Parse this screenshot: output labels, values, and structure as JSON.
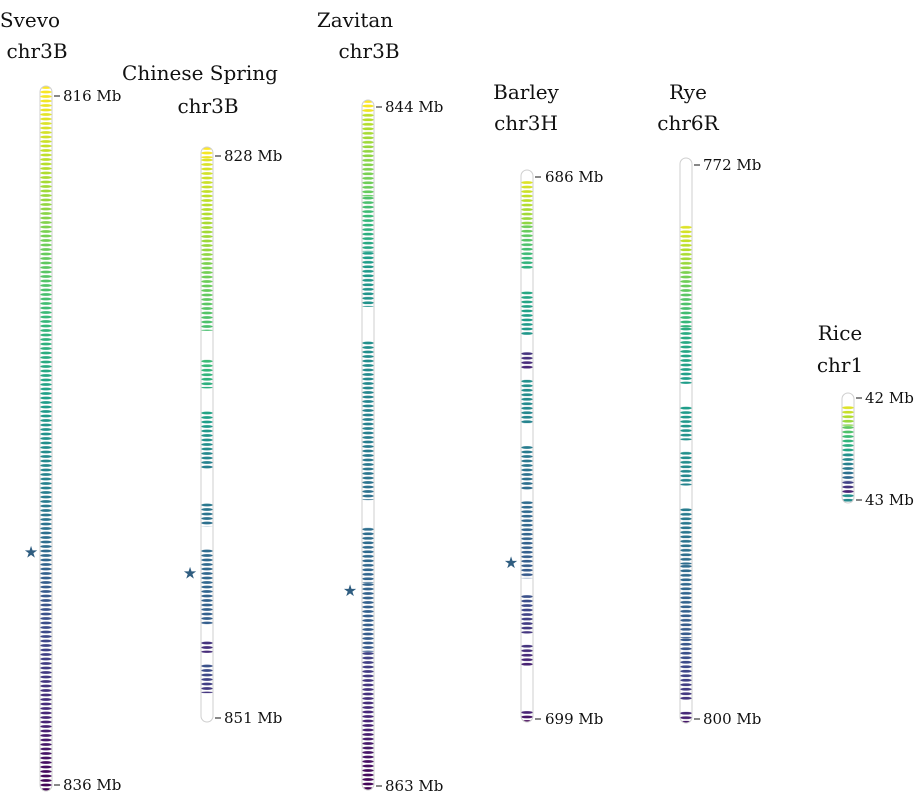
{
  "colors": {
    "viridis": [
      "#440154",
      "#482878",
      "#3e4989",
      "#31688e",
      "#26828e",
      "#1f9e89",
      "#35b779",
      "#6ece58",
      "#b5de2b",
      "#fde725"
    ],
    "gap": "#ffffff",
    "outline": "#d6d6d6",
    "star": "#2f5d80"
  },
  "chromosomes": [
    {
      "id": "svevo",
      "title_line1": "Svevo",
      "title_line2": "chr3B",
      "top_label": "816 Mb",
      "bottom_label": "836 Mb",
      "has_star": true,
      "star_fraction": 0.66,
      "segments": [
        [
          0.0,
          1.0,
          1.0,
          0.0
        ]
      ]
    },
    {
      "id": "chinese-spring",
      "title_line1": "Chinese Spring",
      "title_line2": "chr3B",
      "top_label": "828 Mb",
      "bottom_label": "851 Mb",
      "has_star": true,
      "star_fraction": 0.74,
      "segments": [
        [
          0.0,
          0.02,
          1.0,
          0.97
        ],
        [
          0.02,
          0.2,
          0.95,
          0.82
        ],
        [
          0.2,
          0.32,
          0.8,
          0.7
        ],
        [
          0.37,
          0.42,
          0.68,
          0.62
        ],
        [
          0.46,
          0.56,
          0.58,
          0.42
        ],
        [
          0.62,
          0.66,
          0.4,
          0.36
        ],
        [
          0.7,
          0.83,
          0.35,
          0.3
        ],
        [
          0.86,
          0.88,
          0.15,
          0.12
        ],
        [
          0.9,
          0.95,
          0.25,
          0.15
        ]
      ]
    },
    {
      "id": "zavitan",
      "title_line1": "Zavitan",
      "title_line2": "chr3B",
      "top_label": "844 Mb",
      "bottom_label": "863 Mb",
      "has_star": true,
      "star_fraction": 0.71,
      "segments": [
        [
          0.0,
          0.02,
          1.0,
          0.97
        ],
        [
          0.02,
          0.14,
          0.9,
          0.75
        ],
        [
          0.14,
          0.22,
          0.72,
          0.58
        ],
        [
          0.22,
          0.3,
          0.56,
          0.5
        ],
        [
          0.35,
          0.5,
          0.5,
          0.42
        ],
        [
          0.5,
          0.58,
          0.42,
          0.36
        ],
        [
          0.62,
          0.7,
          0.36,
          0.32
        ],
        [
          0.7,
          0.8,
          0.32,
          0.28
        ],
        [
          0.8,
          1.0,
          0.2,
          0.0
        ]
      ]
    },
    {
      "id": "barley",
      "title_line1": "Barley",
      "title_line2": "chr3H",
      "top_label": "686 Mb",
      "bottom_label": "699 Mb",
      "has_star": true,
      "star_fraction": 0.71,
      "segments": [
        [
          0.02,
          0.1,
          0.95,
          0.82
        ],
        [
          0.1,
          0.18,
          0.78,
          0.62
        ],
        [
          0.22,
          0.3,
          0.6,
          0.52
        ],
        [
          0.33,
          0.36,
          0.15,
          0.1
        ],
        [
          0.38,
          0.46,
          0.5,
          0.45
        ],
        [
          0.5,
          0.58,
          0.42,
          0.35
        ],
        [
          0.6,
          0.74,
          0.35,
          0.28
        ],
        [
          0.77,
          0.84,
          0.25,
          0.15
        ],
        [
          0.86,
          0.9,
          0.15,
          0.08
        ],
        [
          0.98,
          1.0,
          0.1,
          0.0
        ]
      ]
    },
    {
      "id": "rye",
      "title_line1": "Rye",
      "title_line2": "chr6R",
      "top_label": "772 Mb",
      "bottom_label": "800 Mb",
      "has_star": false,
      "star_fraction": 0.0,
      "segments": [
        [
          0.12,
          0.2,
          0.95,
          0.82
        ],
        [
          0.2,
          0.3,
          0.8,
          0.65
        ],
        [
          0.3,
          0.4,
          0.62,
          0.55
        ],
        [
          0.44,
          0.5,
          0.55,
          0.5
        ],
        [
          0.52,
          0.58,
          0.5,
          0.45
        ],
        [
          0.62,
          0.72,
          0.42,
          0.35
        ],
        [
          0.72,
          0.85,
          0.35,
          0.28
        ],
        [
          0.85,
          0.96,
          0.28,
          0.15
        ],
        [
          0.98,
          1.0,
          0.12,
          0.05
        ]
      ]
    },
    {
      "id": "rice",
      "title_line1": "Rice",
      "title_line2": "chr1",
      "top_label": "42 Mb",
      "bottom_label": "43 Mb",
      "has_star": false,
      "star_fraction": 0.0,
      "segments": [
        [
          0.12,
          0.3,
          0.95,
          0.8
        ],
        [
          0.3,
          0.55,
          0.75,
          0.55
        ],
        [
          0.55,
          0.8,
          0.5,
          0.3
        ],
        [
          0.8,
          0.92,
          0.2,
          0.05
        ],
        [
          0.92,
          1.0,
          0.5,
          0.45
        ]
      ]
    }
  ]
}
